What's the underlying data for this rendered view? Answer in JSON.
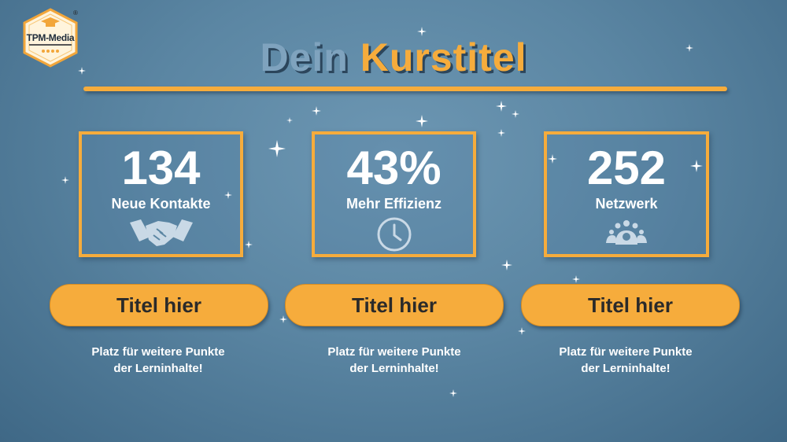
{
  "logo": {
    "text": "TPM-Media",
    "registered": "®"
  },
  "title": {
    "word1": "Dein",
    "word2": "Kurstitel"
  },
  "stats": [
    {
      "number": "134",
      "label": "Neue Kontakte",
      "icon": "handshake-icon"
    },
    {
      "number": "43%",
      "label": "Mehr Effizienz",
      "icon": "clock-icon"
    },
    {
      "number": "252",
      "label": "Netzwerk",
      "icon": "network-people-icon"
    }
  ],
  "cards": [
    {
      "title": "Titel hier",
      "line1": "Platz für weitere Punkte",
      "line2": "der Lerninhalte!"
    },
    {
      "title": "Titel hier",
      "line1": "Platz für weitere Punkte",
      "line2": "der Lerninhalte!"
    },
    {
      "title": "Titel hier",
      "line1": "Platz für weitere Punkte",
      "line2": "der Lerninhalte!"
    }
  ],
  "colors": {
    "accent": "#f6ac3c",
    "title_primary": "#7fa3be",
    "background": "#5b86a3",
    "text": "#ffffff"
  }
}
